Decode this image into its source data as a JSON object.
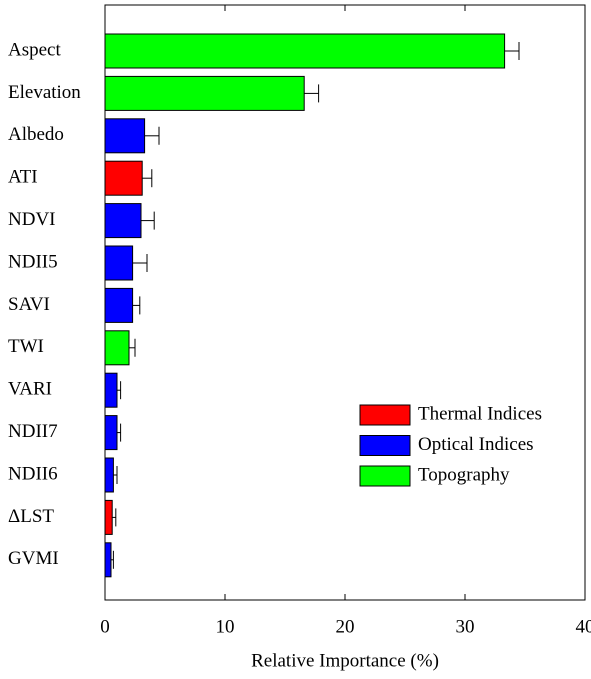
{
  "chart_data": {
    "type": "bar",
    "orientation": "horizontal",
    "x_label": "Relative Importance (%)",
    "categories": [
      "Aspect",
      "Elevation",
      "Albedo",
      "ATI",
      "NDVI",
      "NDII5",
      "SAVI",
      "TWI",
      "VARI",
      "NDII7",
      "NDII6",
      "ΔLST",
      "GVMI"
    ],
    "series": [
      {
        "name": "Thermal Indices",
        "color": "#ff0000",
        "values": [
          null,
          null,
          null,
          3.1,
          null,
          null,
          null,
          null,
          null,
          null,
          null,
          0.6,
          null
        ],
        "errors": [
          null,
          null,
          null,
          0.8,
          null,
          null,
          null,
          null,
          null,
          null,
          null,
          0.3,
          null
        ]
      },
      {
        "name": "Optical Indices",
        "color": "#0000ff",
        "values": [
          null,
          null,
          3.3,
          null,
          3.0,
          2.3,
          2.3,
          null,
          1.0,
          1.0,
          0.7,
          null,
          0.5
        ],
        "errors": [
          null,
          null,
          1.2,
          null,
          1.1,
          1.2,
          0.6,
          null,
          0.3,
          0.3,
          0.3,
          null,
          0.2
        ]
      },
      {
        "name": "Topography",
        "color": "#00ff00",
        "values": [
          33.3,
          16.6,
          null,
          null,
          null,
          null,
          null,
          2.0,
          null,
          null,
          null,
          null,
          null
        ],
        "errors": [
          1.2,
          1.2,
          null,
          null,
          null,
          null,
          null,
          0.5,
          null,
          null,
          null,
          null,
          null
        ]
      }
    ],
    "xlim": [
      0,
      40
    ],
    "xticks": [
      0,
      10,
      20,
      30,
      40
    ],
    "legend": "lower right"
  }
}
